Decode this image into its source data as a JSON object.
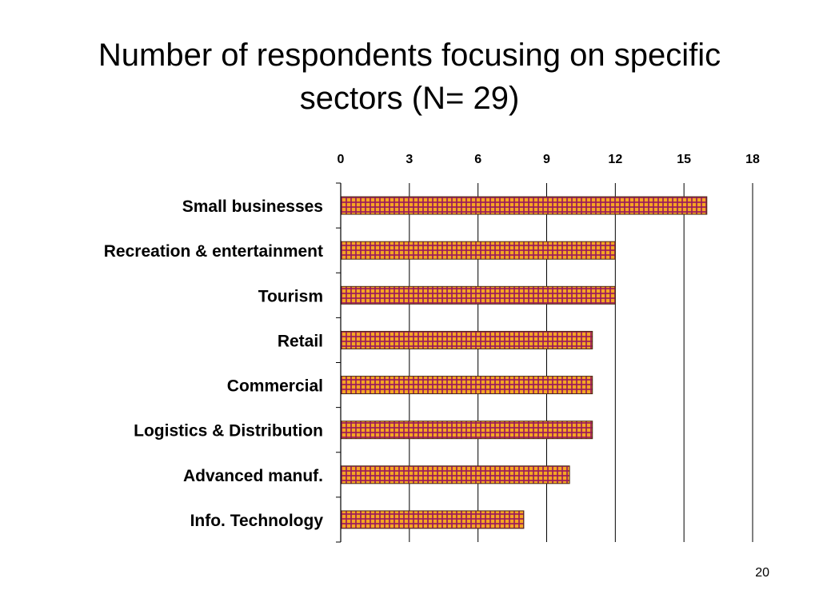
{
  "slide": {
    "title_line1": "Number of respondents focusing on specific",
    "title_line2": "sectors (N= 29)",
    "page_number": "20"
  },
  "chart_data": {
    "type": "bar",
    "orientation": "horizontal",
    "title": "",
    "xlabel": "",
    "ylabel": "",
    "categories": [
      "Small businesses",
      "Recreation & entertainment",
      "Tourism",
      "Retail",
      "Commercial",
      "Logistics & Distribution",
      "Advanced manuf.",
      "Info. Technology"
    ],
    "values": [
      16,
      12,
      12,
      11,
      11,
      11,
      10,
      8
    ],
    "xlim": [
      0,
      18
    ],
    "x_ticks": [
      0,
      3,
      6,
      9,
      12,
      15,
      18
    ],
    "value_axis_position": "top",
    "grid": true,
    "legend": false,
    "bar_color": "#f5a623",
    "bar_pattern_color": "#9b1c5b"
  }
}
